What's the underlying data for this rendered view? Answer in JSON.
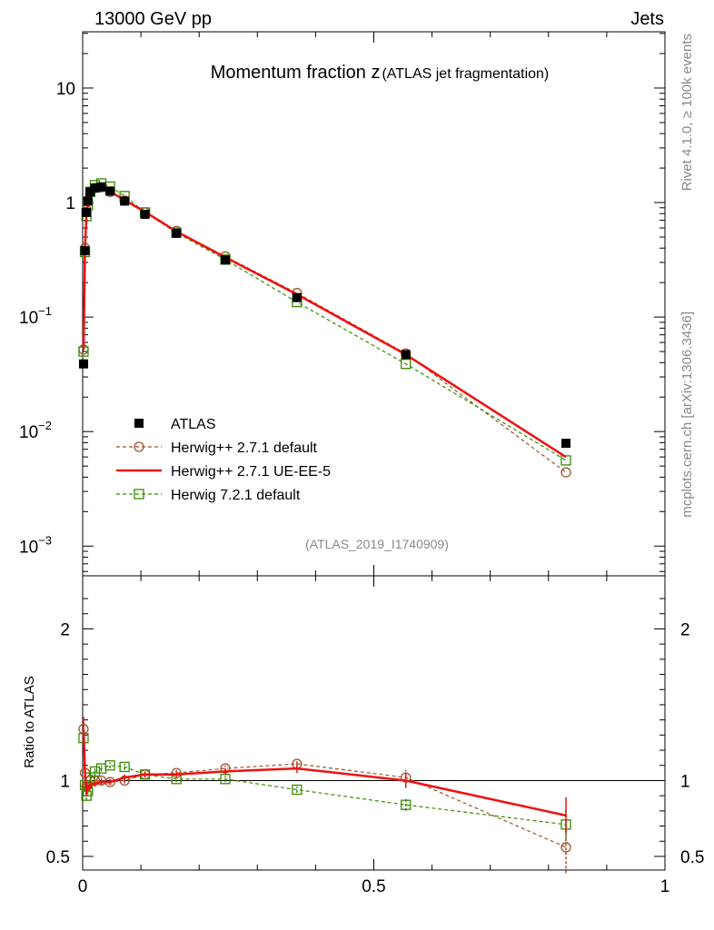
{
  "header": {
    "left": "13000 GeV pp",
    "right": "Jets"
  },
  "side_text": {
    "rivet": "Rivet 4.1.0, ≥ 100k events",
    "source": "mcplots.cern.ch [arXiv:1306.3436]"
  },
  "analysis_id": "(ATLAS_2019_I1740909)",
  "chart_data": {
    "type": "line",
    "title": "Momentum fraction z",
    "title_suffix": "(ATLAS jet fragmentation)",
    "xlim": [
      0,
      1
    ],
    "x_ticks": [
      0,
      0.5,
      1
    ],
    "x_tick_labels": [
      "0",
      "0.5",
      "1"
    ],
    "main_panel": {
      "yscale": "log",
      "ylim": [
        0.00055,
        31
      ],
      "y_ticks": [
        0.001,
        0.01,
        0.1,
        1,
        10
      ],
      "y_tick_labels": [
        [
          "10",
          "−3"
        ],
        [
          "10",
          "−2"
        ],
        [
          "10",
          "−1"
        ],
        [
          "1",
          ""
        ],
        [
          "10",
          ""
        ]
      ]
    },
    "ratio_panel": {
      "ylabel": "Ratio to ATLAS",
      "ylim": [
        0.41,
        2.35
      ],
      "y_ticks": [
        0.5,
        1,
        2
      ],
      "y_tick_labels": [
        "0.5",
        "1",
        "2"
      ],
      "reference": 1
    },
    "x": [
      0.0015,
      0.004,
      0.0065,
      0.009,
      0.013,
      0.021,
      0.032,
      0.047,
      0.072,
      0.107,
      0.161,
      0.245,
      0.368,
      0.555,
      0.83
    ],
    "series": [
      {
        "name": "ATLAS",
        "style": "data",
        "color": "#000000",
        "values": [
          0.039,
          0.38,
          0.82,
          1.03,
          1.24,
          1.34,
          1.37,
          1.26,
          1.03,
          0.79,
          0.54,
          0.315,
          0.148,
          0.047,
          0.0079
        ],
        "ratio": [
          1,
          1,
          1,
          1,
          1,
          1,
          1,
          1,
          1,
          1,
          1,
          1,
          1,
          1,
          1
        ]
      },
      {
        "name": "Herwig++ 2.7.1 default",
        "style": "dashed-circle",
        "color": "#a0522d",
        "values": [
          0.052,
          0.4,
          0.86,
          1.05,
          1.24,
          1.34,
          1.36,
          1.24,
          1.04,
          0.82,
          0.565,
          0.338,
          0.162,
          0.048,
          0.0044
        ],
        "ratio": [
          1.34,
          1.05,
          0.96,
          0.97,
          1.0,
          1.0,
          1.0,
          0.99,
          1.0,
          1.04,
          1.05,
          1.08,
          1.11,
          1.02,
          0.56
        ],
        "ratio_err": [
          0.08,
          0.04,
          0.03,
          0.02,
          0.02,
          0.02,
          0.02,
          0.02,
          0.02,
          0.02,
          0.02,
          0.02,
          0.03,
          0.05,
          0.17
        ]
      },
      {
        "name": "Herwig++ 2.7.1 UE-EE-5",
        "style": "solid-line",
        "color": "#ee1111",
        "values": [
          0.052,
          0.4,
          0.8,
          0.97,
          1.18,
          1.31,
          1.36,
          1.25,
          1.05,
          0.83,
          0.56,
          0.332,
          0.158,
          0.047,
          0.006
        ],
        "ratio": [
          1.34,
          1.05,
          0.93,
          0.95,
          0.97,
          0.98,
          0.99,
          0.99,
          1.02,
          1.04,
          1.04,
          1.06,
          1.08,
          1.0,
          0.77
        ],
        "ratio_err": [
          0.08,
          0.04,
          0.03,
          0.02,
          0.02,
          0.02,
          0.02,
          0.02,
          0.02,
          0.02,
          0.02,
          0.02,
          0.03,
          0.05,
          0.12
        ]
      },
      {
        "name": "Herwig 7.2.1 default",
        "style": "dashed-square",
        "color": "#3a8a00",
        "values": [
          0.05,
          0.37,
          0.76,
          0.95,
          1.24,
          1.42,
          1.47,
          1.38,
          1.14,
          0.82,
          0.545,
          0.318,
          0.135,
          0.039,
          0.0056
        ],
        "ratio": [
          1.28,
          0.97,
          0.9,
          0.93,
          1.02,
          1.06,
          1.08,
          1.1,
          1.09,
          1.04,
          1.01,
          1.01,
          0.94,
          0.84,
          0.71
        ],
        "ratio_err": [
          0.06,
          0.03,
          0.03,
          0.02,
          0.02,
          0.02,
          0.02,
          0.02,
          0.02,
          0.02,
          0.02,
          0.02,
          0.02,
          0.04,
          0.1
        ]
      }
    ],
    "legend": {
      "placement": "lower-left"
    }
  }
}
